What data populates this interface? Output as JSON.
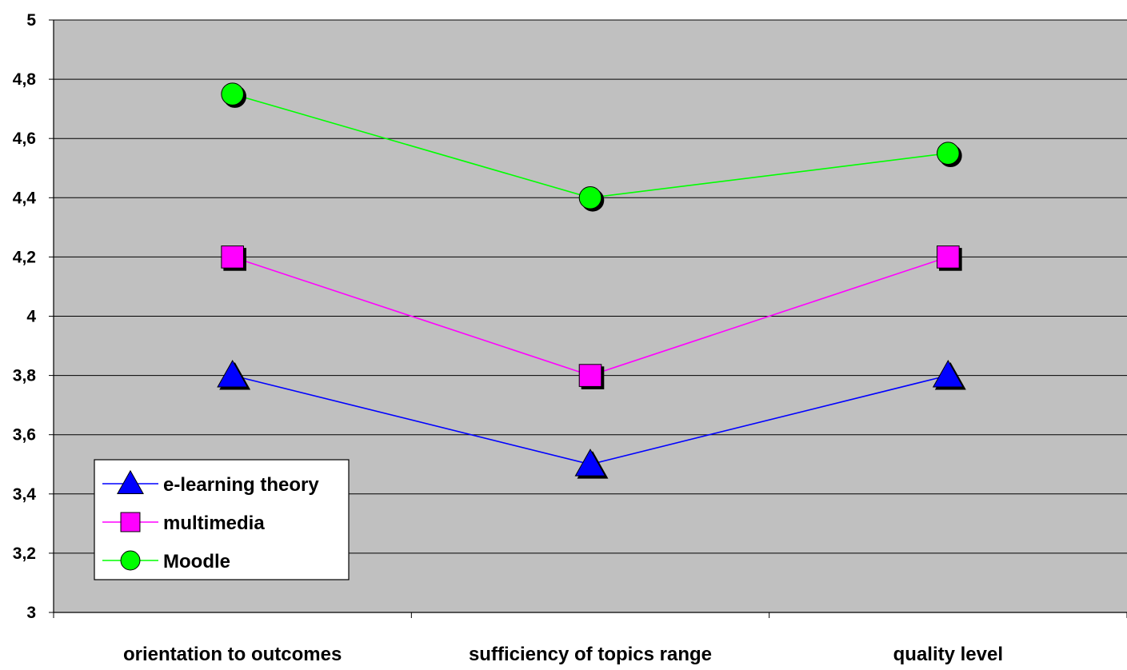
{
  "chart_data": {
    "type": "line",
    "title": "",
    "xlabel": "",
    "ylabel": "",
    "categories": [
      "orientation to outcomes",
      "sufficiency of topics range",
      "quality level"
    ],
    "ylim": [
      3,
      5
    ],
    "yticks": [
      3,
      3.2,
      3.4,
      3.6,
      3.8,
      4,
      4.2,
      4.4,
      4.6,
      4.8,
      5
    ],
    "ytick_labels": [
      "3",
      "3,2",
      "3,4",
      "3,6",
      "3,8",
      "4",
      "4,2",
      "4,4",
      "4,6",
      "4,8",
      "5"
    ],
    "grid": true,
    "plot_background": "#C0C0C0",
    "legend_position": "bottom-left",
    "series": [
      {
        "name": "e-learning theory",
        "values": [
          3.8,
          3.5,
          3.8
        ],
        "color": "#0000FF",
        "marker": "triangle"
      },
      {
        "name": "multimedia",
        "values": [
          4.2,
          3.8,
          4.2
        ],
        "color": "#FF00FF",
        "marker": "square"
      },
      {
        "name": "Moodle",
        "values": [
          4.75,
          4.4,
          4.55
        ],
        "color": "#00FF00",
        "marker": "circle"
      }
    ]
  }
}
